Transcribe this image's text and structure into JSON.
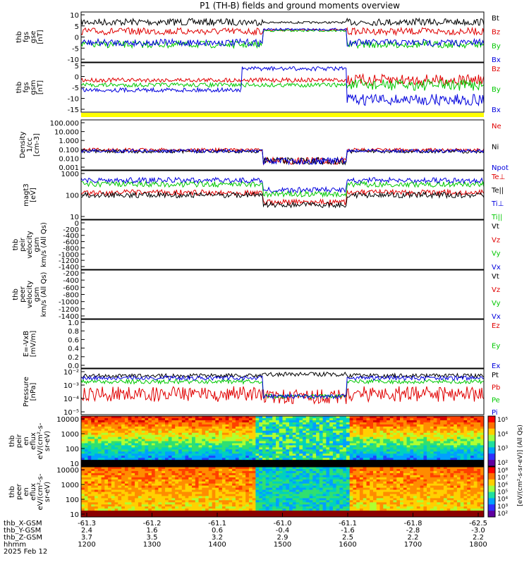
{
  "title": "P1 (TH-B) fields and ground moments overview",
  "colors": {
    "black": "#000000",
    "red": "#e00000",
    "green": "#00c800",
    "blue": "#0000dd",
    "yellow": "#ffff00"
  },
  "chart_data": [
    {
      "id": "fgs_gse",
      "type": "line",
      "ylabel": [
        "thb",
        "fgs",
        "gse",
        "[nT]"
      ],
      "yticks": [
        10,
        5,
        0,
        -5,
        -10
      ],
      "ylim": [
        -13,
        14
      ],
      "series": [
        {
          "name": "Bt",
          "color": "black"
        },
        {
          "name": "Bz",
          "color": "red"
        },
        {
          "name": "By",
          "color": "green"
        },
        {
          "name": "Bx",
          "color": "blue"
        }
      ]
    },
    {
      "id": "fgs_gsm",
      "type": "line",
      "ylabel": [
        "thb",
        "fgs",
        "gsm",
        "[nT]"
      ],
      "yticks": [
        5,
        0,
        -5,
        -10,
        -15
      ],
      "ylim": [
        -18,
        8
      ],
      "series": [
        {
          "name": "Bz",
          "color": "red"
        },
        {
          "name": "By",
          "color": "green"
        },
        {
          "name": "Bx",
          "color": "blue"
        }
      ]
    },
    {
      "id": "density",
      "type": "line",
      "ylabel": [
        "Density",
        "1/cc",
        "[cm-3]"
      ],
      "yticks": [
        "100.000",
        "10.000",
        "1.000",
        "0.100",
        "0.010",
        "0.001"
      ],
      "log": true,
      "series": [
        {
          "name": "Ne",
          "color": "red"
        },
        {
          "name": "Ni",
          "color": "black"
        },
        {
          "name": "Npot",
          "color": "blue"
        }
      ]
    },
    {
      "id": "temp",
      "type": "line",
      "ylabel": [
        "magt3",
        "[eV]"
      ],
      "yticks": [
        1000,
        100,
        10
      ],
      "log": true,
      "series": [
        {
          "name": "Te⊥",
          "color": "red"
        },
        {
          "name": "Te||",
          "color": "black"
        },
        {
          "name": "Ti⊥",
          "color": "blue"
        },
        {
          "name": "Ti||",
          "color": "green"
        }
      ]
    },
    {
      "id": "peir_vel",
      "type": "line",
      "ylabel": [
        "thb",
        "peir",
        "velocity",
        "gsm",
        "km/s (All Qs)"
      ],
      "yticks": [
        0,
        -200,
        -400,
        -600,
        -800,
        -1000,
        -1200,
        -1400
      ],
      "series": [
        {
          "name": "Vt",
          "color": "black"
        },
        {
          "name": "Vz",
          "color": "red"
        },
        {
          "name": "Vy",
          "color": "green"
        },
        {
          "name": "Vx",
          "color": "blue"
        }
      ]
    },
    {
      "id": "peer_vel",
      "type": "line",
      "ylabel": [
        "thb",
        "peer",
        "velocity",
        "gsm",
        "km/s (All Qs)"
      ],
      "yticks": [
        -200,
        -400,
        -600,
        -800,
        -1000,
        -1200,
        -1400
      ],
      "series": [
        {
          "name": "Vt",
          "color": "black"
        },
        {
          "name": "Vz",
          "color": "red"
        },
        {
          "name": "Vy",
          "color": "green"
        },
        {
          "name": "Vx",
          "color": "blue"
        }
      ]
    },
    {
      "id": "efield",
      "type": "line",
      "ylabel": [
        "E=-VxB",
        "[mV/m]"
      ],
      "yticks": [
        "1.0",
        "0.8",
        "0.6",
        "0.4",
        "0.2",
        "0.0"
      ],
      "series": [
        {
          "name": "Ez",
          "color": "red"
        },
        {
          "name": "Ey",
          "color": "green"
        },
        {
          "name": "Ex",
          "color": "blue"
        }
      ]
    },
    {
      "id": "pressure",
      "type": "line",
      "ylabel": [
        "Pressure",
        "[nPa]"
      ],
      "yticks": [
        "10⁻²",
        "10⁻³",
        "10⁻⁴",
        "10⁻⁵"
      ],
      "log": true,
      "series": [
        {
          "name": "Pt",
          "color": "black"
        },
        {
          "name": "Pb",
          "color": "red"
        },
        {
          "name": "Pe",
          "color": "green"
        },
        {
          "name": "Pi",
          "color": "blue"
        }
      ]
    },
    {
      "id": "peir_en",
      "type": "heatmap",
      "ylabel": [
        "thb",
        "peir",
        "en",
        "eflux",
        "eV/(cm²-s-",
        "sr-eV)"
      ],
      "yticks": [
        10000,
        1000,
        100,
        10
      ],
      "colorbar": {
        "ticks": [
          "10⁵",
          "10⁴",
          "10³",
          "10²"
        ],
        "label": "[eV/(cm²-s-sr-eV)] (All Qs)"
      }
    },
    {
      "id": "peer_en",
      "type": "heatmap",
      "ylabel": [
        "thb",
        "peer",
        "en",
        "eflux",
        "eV/(cm²-s-",
        "sr-eV)"
      ],
      "yticks": [
        10000,
        1000,
        100,
        10
      ],
      "colorbar": {
        "ticks": [
          "10⁸",
          "10⁷",
          "10⁶",
          "10⁵",
          "10⁴",
          "10³",
          "10²"
        ],
        "label": "[eV/(cm²-s-sr-eV)] (All Qs)"
      }
    }
  ],
  "xaxis": {
    "rows": [
      {
        "label": "thb_X-GSM",
        "values": [
          "-61.3",
          "-61.2",
          "-61.1",
          "-61.0",
          "-61.1",
          "-61.8",
          "-62.5"
        ]
      },
      {
        "label": "thb_Y-GSM",
        "values": [
          "2.4",
          "1.6",
          "0.6",
          "-0.4",
          "-1.6",
          "-2.8",
          "-3.0"
        ]
      },
      {
        "label": "thb_Z-GSM",
        "values": [
          "3.7",
          "3.5",
          "3.2",
          "2.9",
          "2.5",
          "2.2",
          "2.2"
        ]
      },
      {
        "label": "hhmm",
        "values": [
          "1200",
          "1300",
          "1400",
          "1500",
          "1600",
          "1700",
          "1800"
        ]
      }
    ],
    "date": "2025 Feb 12"
  }
}
